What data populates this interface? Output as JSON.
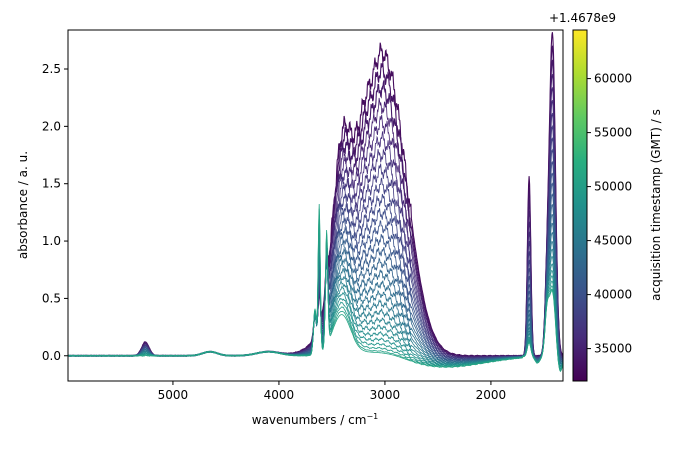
{
  "chart_data": {
    "type": "line",
    "title": "",
    "xlabel": "wavenumbers / cm",
    "xlabel_sup": "−1",
    "ylabel": "absorbance / a. u.",
    "xlim": [
      5990,
      1320
    ],
    "ylim": [
      -0.22,
      2.84
    ],
    "x_inverted": true,
    "grid": false,
    "xticks": [
      5000,
      4000,
      3000,
      2000
    ],
    "xtick_labels": [
      "5000",
      "4000",
      "3000",
      "2000"
    ],
    "yticks": [
      0.0,
      0.5,
      1.0,
      1.5,
      2.0,
      2.5
    ],
    "ytick_labels": [
      "0.0",
      "0.5",
      "1.0",
      "1.5",
      "2.0",
      "2.5"
    ],
    "series_count": 28,
    "series_style": "one spectrum per acquisition timestamp, coloured by timestamp (viridis)",
    "profile": {
      "broad_band_peak_x": 3000,
      "broad_band_peak_first": 2.55,
      "broad_band_peak_last": 0.06,
      "band_3400_first": 1.72,
      "sharp_peak_3620_last": 1.3,
      "sharp_peak_3550_last": 1.0,
      "peak_1640_first": 1.6,
      "peak_1420_first": 2.8,
      "baseline_min_last": -0.1
    },
    "colorbar": {
      "label": "acquisition timestamp (GMT) / s",
      "offset_label": "+1.4678e9",
      "range": [
        32000,
        64500
      ],
      "ticks": [
        35000,
        40000,
        45000,
        50000,
        55000,
        60000
      ],
      "tick_labels": [
        "35000",
        "40000",
        "45000",
        "50000",
        "55000",
        "60000"
      ],
      "colormap": "viridis"
    }
  }
}
